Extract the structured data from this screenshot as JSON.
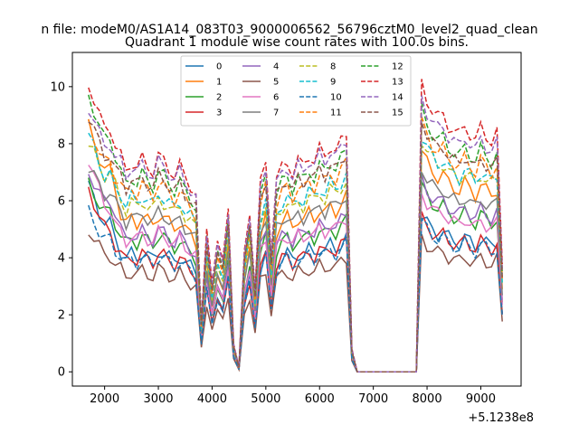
{
  "chart_data": {
    "type": "line",
    "suptitle": "n file: modeM0/AS1A14_083T03_9000006562_56796cztM0_level2_quad_clean",
    "title": "Quadrant 1 module wise count rates with 100.0s bins.",
    "xlabel": "",
    "ylabel": "",
    "x_offset_label": "+5.1238e8",
    "xlim": [
      1400,
      9750
    ],
    "ylim": [
      -0.5,
      11.2
    ],
    "x_ticks": [
      2000,
      3000,
      4000,
      5000,
      6000,
      7000,
      8000,
      9000
    ],
    "x_tick_labels": [
      "2000",
      "3000",
      "4000",
      "5000",
      "6000",
      "7000",
      "8000",
      "9000"
    ],
    "y_ticks": [
      0,
      2,
      4,
      6,
      8,
      10
    ],
    "y_tick_labels": [
      "0",
      "2",
      "4",
      "6",
      "8",
      "10"
    ],
    "grid": false,
    "legend_position": "top-center",
    "legend_columns": 4,
    "x": [
      1700,
      1800,
      1900,
      2000,
      2100,
      2200,
      2300,
      2400,
      2500,
      2600,
      2700,
      2800,
      2900,
      3000,
      3100,
      3200,
      3300,
      3400,
      3500,
      3600,
      3700,
      3800,
      3900,
      4000,
      4100,
      4200,
      4300,
      4400,
      4500,
      4600,
      4700,
      4800,
      4900,
      5000,
      5100,
      5200,
      5300,
      5400,
      5500,
      5600,
      5700,
      5800,
      5900,
      6000,
      6100,
      6200,
      6300,
      6400,
      6500,
      6600,
      6700,
      6800,
      6900,
      7000,
      7100,
      7200,
      7300,
      7400,
      7500,
      7600,
      7700,
      7800,
      7900,
      8000,
      8100,
      8200,
      8300,
      8400,
      8500,
      8600,
      8700,
      8800,
      8900,
      9000,
      9100,
      9200,
      9300,
      9400
    ],
    "series": [
      {
        "name": "0",
        "color": "#1f77b4",
        "dash": "solid",
        "level": 5.1,
        "mid": 4.6,
        "late": 4.9,
        "start": 6.5
      },
      {
        "name": "1",
        "color": "#ff7f0e",
        "dash": "solid",
        "level": 7.1,
        "mid": 6.0,
        "late": 6.9,
        "start": 8.6
      },
      {
        "name": "2",
        "color": "#2ca02c",
        "dash": "solid",
        "level": 5.8,
        "mid": 5.2,
        "late": 5.8,
        "start": 6.6
      },
      {
        "name": "3",
        "color": "#d62728",
        "dash": "solid",
        "level": 4.8,
        "mid": 4.5,
        "late": 4.8,
        "start": 6.4
      },
      {
        "name": "4",
        "color": "#9467bd",
        "dash": "solid",
        "level": 6.2,
        "mid": 5.4,
        "late": 6.0,
        "start": 7.0
      },
      {
        "name": "5",
        "color": "#8c564b",
        "dash": "solid",
        "level": 4.1,
        "mid": 3.9,
        "late": 4.2,
        "start": 5.0
      },
      {
        "name": "6",
        "color": "#e377c2",
        "dash": "solid",
        "level": 5.5,
        "mid": 5.3,
        "late": 5.6,
        "start": 7.5
      },
      {
        "name": "7",
        "color": "#7f7f7f",
        "dash": "solid",
        "level": 6.6,
        "mid": 6.1,
        "late": 6.4,
        "start": 7.2
      },
      {
        "name": "8",
        "color": "#bcbd22",
        "dash": "dashed",
        "level": 7.3,
        "mid": 6.6,
        "late": 7.3,
        "start": 8.0
      },
      {
        "name": "9",
        "color": "#17becf",
        "dash": "dashed",
        "level": 7.0,
        "mid": 6.8,
        "late": 7.4,
        "start": 8.3
      },
      {
        "name": "10",
        "color": "#1f77b4",
        "dash": "dashed",
        "level": 4.7,
        "mid": 4.4,
        "late": 4.7,
        "start": 5.6
      },
      {
        "name": "11",
        "color": "#ff7f0e",
        "dash": "dashed",
        "level": 7.6,
        "mid": 7.2,
        "late": 7.8,
        "start": 8.7
      },
      {
        "name": "12",
        "color": "#2ca02c",
        "dash": "dashed",
        "level": 8.4,
        "mid": 7.6,
        "late": 8.2,
        "start": 9.7
      },
      {
        "name": "13",
        "color": "#d62728",
        "dash": "dashed",
        "level": 8.8,
        "mid": 8.2,
        "late": 9.0,
        "start": 10.1
      },
      {
        "name": "14",
        "color": "#9467bd",
        "dash": "dashed",
        "level": 8.3,
        "mid": 8.0,
        "late": 8.6,
        "start": 9.3
      },
      {
        "name": "15",
        "color": "#8c564b",
        "dash": "dashed",
        "level": 7.8,
        "mid": 7.5,
        "late": 7.9,
        "start": 9.0
      }
    ]
  }
}
